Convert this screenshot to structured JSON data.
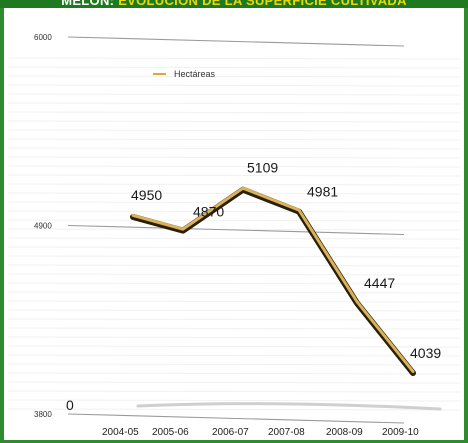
{
  "title": {
    "prefix": "MELÓN:",
    "main": "EVOLUCIÓN DE LA SUPERFICIE CULTIVADA"
  },
  "colors": {
    "frame": "#2e8b2e",
    "title_bg": "#1f7a1f",
    "title_highlight": "#e8d80a",
    "line_main": "#2a2008",
    "line_highlight": "#d9b25a"
  },
  "chart_data": {
    "type": "line",
    "categories": [
      "2004-05",
      "2005-06",
      "2006-07",
      "2007-08",
      "2008-09",
      "2009-10"
    ],
    "series": [
      {
        "name": "Hectáreas",
        "values": [
          4950,
          4870,
          5109,
          4981,
          4447,
          4039
        ],
        "data_labels": [
          "4950",
          "4870",
          "5109",
          "4981",
          "4447",
          "4039"
        ]
      }
    ],
    "y_ticks": [
      "6000",
      "4900",
      "3800"
    ],
    "ylim": [
      3800,
      6000
    ],
    "zero_label": "0",
    "legend": "top-left",
    "grid": true
  }
}
